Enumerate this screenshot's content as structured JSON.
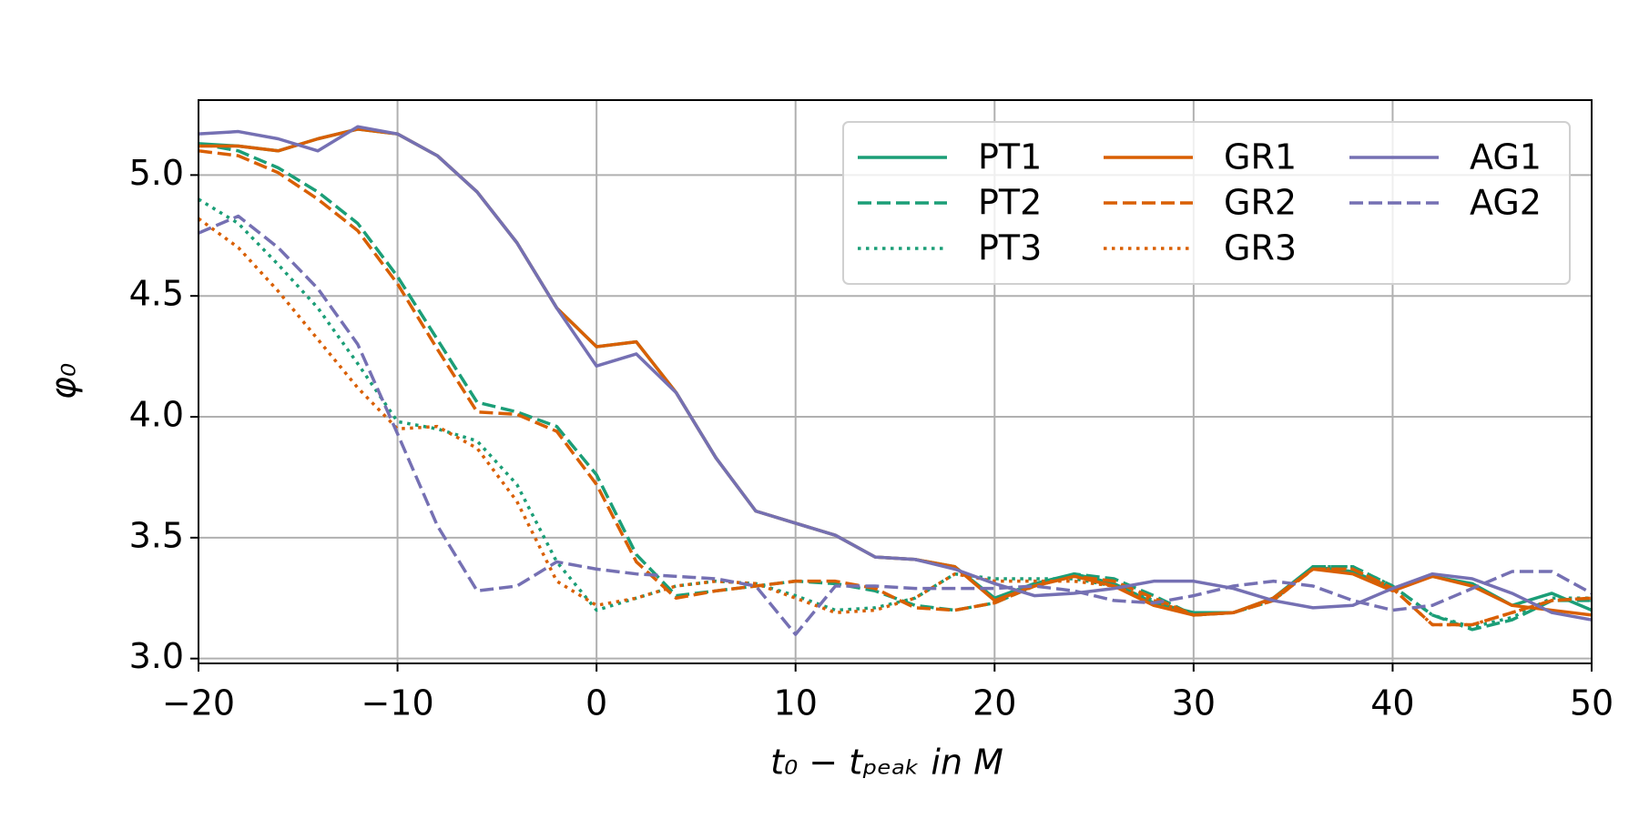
{
  "chart_data": {
    "type": "line",
    "x_label": "t₀ − tₚₑₐₖ in M",
    "y_label": "φ₀",
    "x": [
      -20,
      -18,
      -16,
      -14,
      -12,
      -10,
      -8,
      -6,
      -4,
      -2,
      0,
      2,
      4,
      6,
      8,
      10,
      12,
      14,
      16,
      18,
      20,
      22,
      24,
      26,
      28,
      30,
      32,
      34,
      36,
      38,
      40,
      42,
      44,
      46,
      48,
      50
    ],
    "series": [
      {
        "name": "PT1",
        "color": "#1b9e77",
        "linestyle": "solid",
        "values": [
          5.13,
          5.12,
          5.1,
          5.15,
          5.19,
          5.17,
          5.08,
          4.93,
          4.72,
          4.45,
          4.29,
          4.31,
          4.1,
          3.83,
          3.61,
          3.56,
          3.51,
          3.42,
          3.41,
          3.38,
          3.25,
          3.31,
          3.35,
          3.31,
          3.23,
          3.19,
          3.19,
          3.25,
          3.38,
          3.36,
          3.29,
          3.34,
          3.31,
          3.22,
          3.27,
          3.2
        ]
      },
      {
        "name": "PT2",
        "color": "#1b9e77",
        "linestyle": "dashed",
        "values": [
          5.13,
          5.1,
          5.03,
          4.93,
          4.8,
          4.58,
          4.32,
          4.06,
          4.02,
          3.96,
          3.76,
          3.43,
          3.26,
          3.28,
          3.3,
          3.32,
          3.31,
          3.28,
          3.22,
          3.2,
          3.23,
          3.3,
          3.35,
          3.33,
          3.26,
          3.18,
          3.19,
          3.24,
          3.38,
          3.38,
          3.3,
          3.18,
          3.12,
          3.16,
          3.24,
          3.24
        ]
      },
      {
        "name": "PT3",
        "color": "#1b9e77",
        "linestyle": "dotted",
        "values": [
          4.9,
          4.8,
          4.63,
          4.45,
          4.22,
          3.98,
          3.95,
          3.9,
          3.72,
          3.4,
          3.2,
          3.25,
          3.3,
          3.32,
          3.31,
          3.26,
          3.2,
          3.21,
          3.25,
          3.35,
          3.33,
          3.33,
          3.33,
          3.3,
          3.24,
          3.18,
          3.19,
          3.24,
          3.38,
          3.38,
          3.3,
          3.18,
          3.13,
          3.17,
          3.25,
          3.25
        ]
      },
      {
        "name": "GR1",
        "color": "#d95f02",
        "linestyle": "solid",
        "values": [
          5.12,
          5.12,
          5.1,
          5.15,
          5.19,
          5.17,
          5.08,
          4.93,
          4.72,
          4.45,
          4.29,
          4.31,
          4.1,
          3.83,
          3.61,
          3.56,
          3.51,
          3.42,
          3.41,
          3.38,
          3.24,
          3.3,
          3.34,
          3.3,
          3.22,
          3.18,
          3.19,
          3.25,
          3.37,
          3.35,
          3.28,
          3.34,
          3.3,
          3.22,
          3.2,
          3.18
        ]
      },
      {
        "name": "GR2",
        "color": "#d95f02",
        "linestyle": "dashed",
        "values": [
          5.1,
          5.08,
          5.01,
          4.9,
          4.77,
          4.55,
          4.28,
          4.02,
          4.01,
          3.94,
          3.72,
          3.4,
          3.25,
          3.28,
          3.3,
          3.32,
          3.32,
          3.29,
          3.21,
          3.2,
          3.23,
          3.3,
          3.34,
          3.32,
          3.25,
          3.18,
          3.19,
          3.24,
          3.37,
          3.37,
          3.29,
          3.14,
          3.14,
          3.19,
          3.24,
          3.25
        ]
      },
      {
        "name": "GR3",
        "color": "#d95f02",
        "linestyle": "dotted",
        "values": [
          4.82,
          4.7,
          4.52,
          4.32,
          4.12,
          3.95,
          3.96,
          3.87,
          3.65,
          3.32,
          3.22,
          3.25,
          3.3,
          3.32,
          3.31,
          3.25,
          3.19,
          3.2,
          3.25,
          3.35,
          3.32,
          3.32,
          3.32,
          3.3,
          3.24,
          3.18,
          3.19,
          3.24,
          3.37,
          3.37,
          3.29,
          3.14,
          3.14,
          3.19,
          3.24,
          3.25
        ]
      },
      {
        "name": "AG1",
        "color": "#7570b3",
        "linestyle": "solid",
        "values": [
          5.17,
          5.18,
          5.15,
          5.1,
          5.2,
          5.17,
          5.08,
          4.93,
          4.72,
          4.45,
          4.21,
          4.26,
          4.1,
          3.83,
          3.61,
          3.56,
          3.51,
          3.42,
          3.41,
          3.37,
          3.31,
          3.26,
          3.27,
          3.29,
          3.32,
          3.32,
          3.29,
          3.24,
          3.21,
          3.22,
          3.29,
          3.35,
          3.33,
          3.27,
          3.19,
          3.16
        ]
      },
      {
        "name": "AG2",
        "color": "#7570b3",
        "linestyle": "dashed",
        "values": [
          4.76,
          4.83,
          4.7,
          4.53,
          4.3,
          3.93,
          3.55,
          3.28,
          3.3,
          3.4,
          3.37,
          3.35,
          3.34,
          3.33,
          3.3,
          3.1,
          3.3,
          3.3,
          3.29,
          3.29,
          3.29,
          3.3,
          3.28,
          3.24,
          3.23,
          3.26,
          3.3,
          3.32,
          3.3,
          3.24,
          3.2,
          3.22,
          3.29,
          3.36,
          3.36,
          3.27
        ]
      }
    ],
    "xlim": [
      -20,
      50
    ],
    "xticks": [
      {
        "value": -20,
        "label": "−20"
      },
      {
        "value": -10,
        "label": "−10"
      },
      0,
      10,
      20,
      30,
      40,
      50
    ],
    "ylim": [
      2.98,
      5.31
    ],
    "yticks": [
      {
        "value": 3,
        "label": "3.0"
      },
      3.5,
      {
        "value": 4,
        "label": "4.0"
      },
      4.5,
      {
        "value": 5,
        "label": "5.0"
      }
    ],
    "grid": true,
    "legend": "upper right",
    "legend_columns": 3
  }
}
